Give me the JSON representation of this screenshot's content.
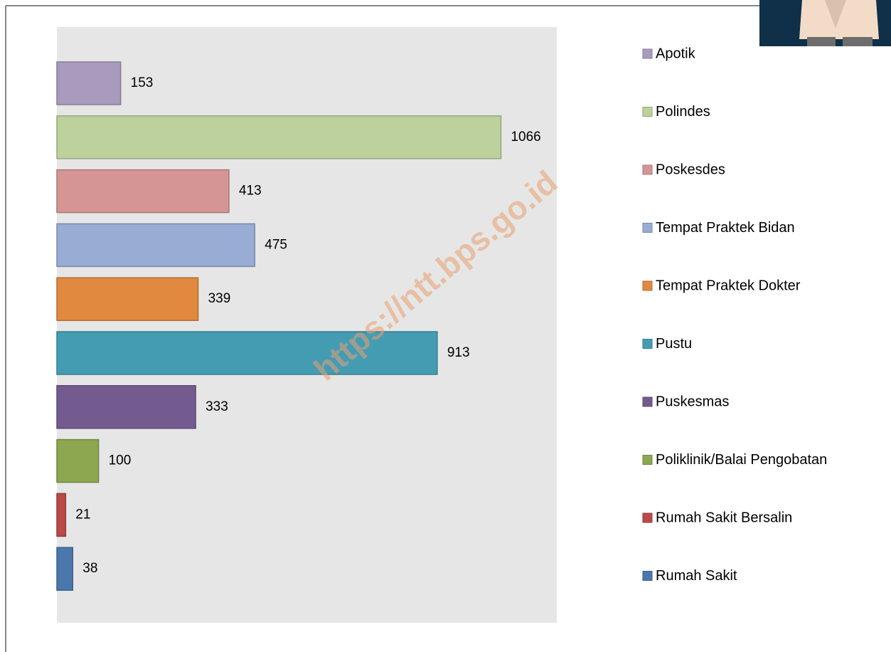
{
  "chart_data": {
    "type": "bar",
    "orientation": "horizontal",
    "watermark": "https://ntt.bps.go.id",
    "categories": [
      "Apotik",
      "Polindes",
      "Poskesdes",
      "Tempat Praktek Bidan",
      "Tempat Praktek Dokter",
      "Pustu",
      "Puskesmas",
      "Poliklinik/Balai Pengobatan",
      "Rumah Sakit Bersalin",
      "Rumah Sakit"
    ],
    "values": [
      153,
      1066,
      413,
      475,
      339,
      913,
      333,
      100,
      21,
      38
    ],
    "colors": [
      "#a99bbd",
      "#bcd19c",
      "#d59595",
      "#98acd4",
      "#e0893f",
      "#449cb3",
      "#735b8f",
      "#8ca74f",
      "#b94a47",
      "#4a78ad"
    ],
    "xlim": [
      0,
      1200
    ],
    "legend": "right"
  }
}
